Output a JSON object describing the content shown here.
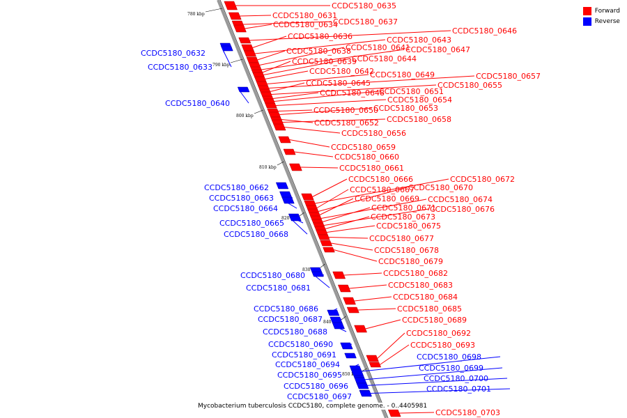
{
  "legend": {
    "forward_label": "Forward",
    "reverse_label": "Reverse",
    "forward_color": "#ff0000",
    "reverse_color": "#0000ff"
  },
  "caption": "Mycobacterium tuberculosis CCDC5180, complete genome. - 0..4405981",
  "ticks": [
    "780 kbp",
    "790 kbp",
    "800 kbp",
    "810 kbp",
    "820 kbp",
    "830 kbp",
    "840 kbp",
    "850 kbp"
  ],
  "forward_genes": [
    "CCDC5180_0635",
    "CCDC5180_0631",
    "CCDC5180_0637",
    "CCDC5180_0634",
    "CCDC5180_0646",
    "CCDC5180_0636",
    "CCDC5180_0643",
    "CCDC5180_0638",
    "CCDC5180_0641",
    "CCDC5180_0647",
    "CCDC5180_0639",
    "CCDC5180_0644",
    "CCDC5180_0642",
    "CCDC5180_0649",
    "CCDC5180_0657",
    "CCDC5180_0645",
    "CCDC5180_0655",
    "CCDC5180_0648",
    "CCDC5180_0651",
    "CCDC5180_0654",
    "CCDC5180_0650",
    "CCDC5180_0653",
    "CCDC5180_0652",
    "CCDC5180_0658",
    "CCDC5180_0656",
    "CCDC5180_0659",
    "CCDC5180_0660",
    "CCDC5180_0661",
    "CCDC5180_0666",
    "CCDC5180_0672",
    "CCDC5180_0667",
    "CCDC5180_0670",
    "CCDC5180_0669",
    "CCDC5180_0674",
    "CCDC5180_0671",
    "CCDC5180_0676",
    "CCDC5180_0673",
    "CCDC5180_0675",
    "CCDC5180_0677",
    "CCDC5180_0678",
    "CCDC5180_0679",
    "CCDC5180_0682",
    "CCDC5180_0683",
    "CCDC5180_0684",
    "CCDC5180_0685",
    "CCDC5180_0689",
    "CCDC5180_0692",
    "CCDC5180_0693",
    "CCDC5180_0703"
  ],
  "reverse_genes": [
    "CCDC5180_0632",
    "CCDC5180_0633",
    "CCDC5180_0640",
    "CCDC5180_0662",
    "CCDC5180_0663",
    "CCDC5180_0664",
    "CCDC5180_0665",
    "CCDC5180_0668",
    "CCDC5180_0680",
    "CCDC5180_0681",
    "CCDC5180_0686",
    "CCDC5180_0687",
    "CCDC5180_0688",
    "CCDC5180_0690",
    "CCDC5180_0691",
    "CCDC5180_0694",
    "CCDC5180_0695",
    "CCDC5180_0696",
    "CCDC5180_0697",
    "CCDC5180_0698",
    "CCDC5180_0699",
    "CCDC5180_0700",
    "CCDC5180_0701"
  ]
}
